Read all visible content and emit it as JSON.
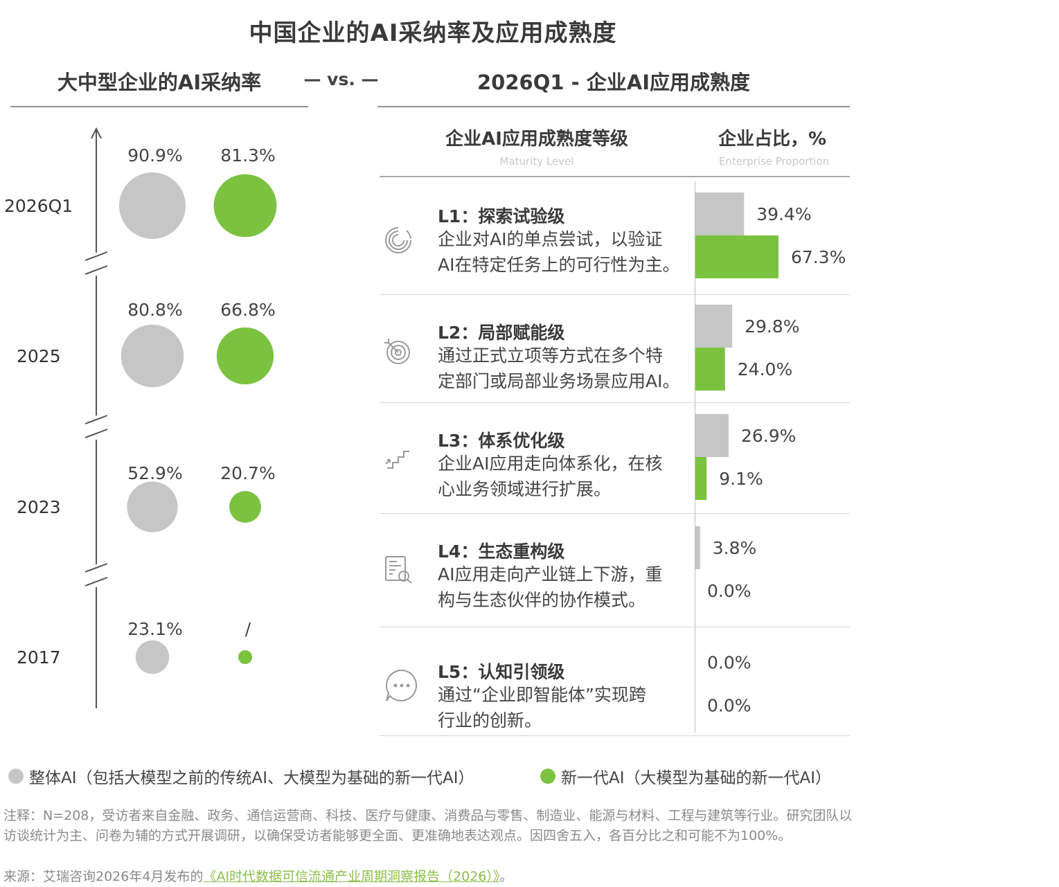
{
  "main_title": "中国企业的AI采纳率及应用成熟度",
  "left_title": "大中型企业的AI采纳率",
  "vs_text": "— vs. —",
  "right_title": "2026Q1 - 企业AI应用成熟度",
  "table": {
    "col1_header": "企业AI应用成熟度等级",
    "col1_sub": "Maturity Level",
    "col2_header": "企业占比，%",
    "col2_sub": "Enterprise Proportion"
  },
  "legend": {
    "gray_label": "整体AI（包括大模型之前的传统AI、大模型为基础的新一代AI）",
    "green_label": "新一代AI（大模型为基础的新一代AI）"
  },
  "colors": {
    "gray": "#c6c6c6",
    "green": "#7cc241",
    "accent_text": "#8cbe4a"
  },
  "footnote": {
    "note": "注释：N=208，受访者来自金融、政务、通信运营商、科技、医疗与健康、消费品与零售、制造业、能源与材料、工程与建筑等行业。研究团队以访谈统计为主、问卷为辅的方式开展调研，以确保受访者能够更全面、更准确地表达观点。因四舍五入，各百分比之和可能不为100%。",
    "source_prefix": "来源：艾瑞咨询2026年4月发布的",
    "source_link": "《AI时代数据可信流通产业周期洞察报告（2026）》",
    "source_suffix": "。"
  },
  "chart_data": [
    {
      "type": "scatter",
      "title": "大中型企业的AI采纳率",
      "categories": [
        "2026Q1",
        "2025",
        "2023",
        "2017"
      ],
      "series": [
        {
          "name": "整体AI",
          "values": [
            90.9,
            80.8,
            52.9,
            23.1
          ],
          "labels": [
            "90.9%",
            "80.8%",
            "52.9%",
            "23.1%"
          ]
        },
        {
          "name": "新一代AI",
          "values": [
            81.3,
            66.8,
            20.7,
            null
          ],
          "labels": [
            "81.3%",
            "66.8%",
            "20.7%",
            "/"
          ]
        }
      ],
      "unit": "%"
    },
    {
      "type": "bar",
      "title": "2026Q1 - 企业AI应用成熟度",
      "xlim": [
        0,
        100
      ],
      "levels": [
        {
          "icon": "spiral-icon",
          "title": "L1：探索试验级",
          "desc": [
            "企业对AI的单点尝试，以验证",
            "AI在特定任务上的可行性为主。"
          ],
          "gray": 39.4,
          "green": 67.3,
          "gray_label": "39.4%",
          "green_label": "67.3%"
        },
        {
          "icon": "target-icon",
          "title": "L2：局部赋能级",
          "desc": [
            "通过正式立项等方式在多个特",
            "定部门或局部业务场景应用AI。"
          ],
          "gray": 29.8,
          "green": 24.0,
          "gray_label": "29.8%",
          "green_label": "24.0%"
        },
        {
          "icon": "stairs-icon",
          "title": "L3：体系优化级",
          "desc": [
            "企业AI应用走向体系化，在核",
            "心业务领域进行扩展。"
          ],
          "gray": 26.9,
          "green": 9.1,
          "gray_label": "26.9%",
          "green_label": "9.1%"
        },
        {
          "icon": "report-search-icon",
          "title": "L4：生态重构级",
          "desc": [
            "AI应用走向产业链上下游，重",
            "构与生态伙伴的协作模式。"
          ],
          "gray": 3.8,
          "green": 0.0,
          "gray_label": "3.8%",
          "green_label": "0.0%"
        },
        {
          "icon": "chat-dots-icon",
          "title": "L5：认知引领级",
          "desc": [
            "通过“企业即智能体”实现跨",
            "行业的创新。"
          ],
          "gray": 0.0,
          "green": 0.0,
          "gray_label": "0.0%",
          "green_label": "0.0%"
        }
      ]
    }
  ]
}
